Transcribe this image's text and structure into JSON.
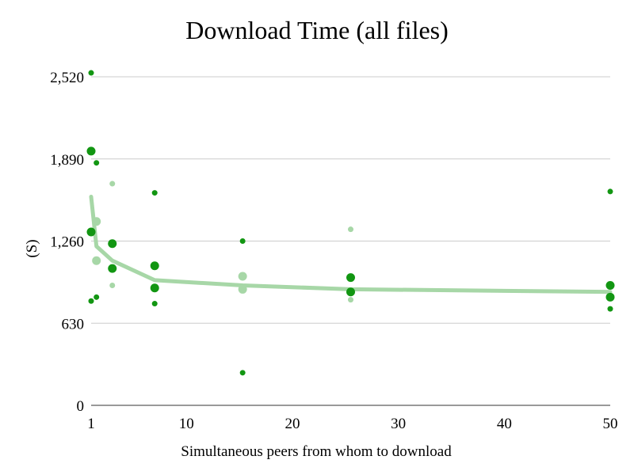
{
  "chart_data": {
    "type": "scatter",
    "title": "Download Time (all files)",
    "xlabel": "Simultaneous peers from whom to download",
    "ylabel": "(S)",
    "xlim": [
      1,
      50
    ],
    "ylim": [
      0,
      2520
    ],
    "x_ticks": [
      1,
      10,
      20,
      30,
      40,
      50
    ],
    "x_tick_labels": [
      "1",
      "10",
      "20",
      "30",
      "40",
      "50"
    ],
    "y_ticks": [
      0,
      630,
      1260,
      1890,
      2520
    ],
    "y_tick_labels": [
      "0",
      "630",
      "1,260",
      "1,890",
      "2,520"
    ],
    "grid": "horizontal",
    "colors": {
      "dark": "#129612",
      "light": "#a7d7a7",
      "grid": "#cccccc"
    },
    "series": [
      {
        "style": "small-dark",
        "points": [
          [
            1,
            2550
          ],
          [
            1,
            800
          ],
          [
            1.5,
            1860
          ],
          [
            1.5,
            830
          ],
          [
            7,
            1630
          ],
          [
            7,
            780
          ],
          [
            15.3,
            1260
          ],
          [
            15.3,
            250
          ],
          [
            50,
            1640
          ],
          [
            50,
            740
          ]
        ]
      },
      {
        "style": "large-dark",
        "points": [
          [
            1,
            1950
          ],
          [
            1,
            1330
          ],
          [
            3,
            1240
          ],
          [
            3,
            1050
          ],
          [
            7,
            1070
          ],
          [
            7,
            900
          ],
          [
            25.5,
            980
          ],
          [
            25.5,
            870
          ],
          [
            50,
            920
          ],
          [
            50,
            830
          ]
        ]
      },
      {
        "style": "small-light",
        "points": [
          [
            3,
            1700
          ],
          [
            3,
            920
          ],
          [
            25.5,
            1350
          ],
          [
            25.5,
            810
          ]
        ]
      },
      {
        "style": "large-light",
        "points": [
          [
            1.5,
            1410
          ],
          [
            1.5,
            1110
          ],
          [
            15.3,
            990
          ],
          [
            15.3,
            890
          ]
        ]
      },
      {
        "style": "trend-line",
        "points": [
          [
            1,
            1600
          ],
          [
            1.5,
            1220
          ],
          [
            3,
            1110
          ],
          [
            7,
            960
          ],
          [
            15.3,
            920
          ],
          [
            25.5,
            890
          ],
          [
            50,
            870
          ]
        ]
      }
    ]
  }
}
